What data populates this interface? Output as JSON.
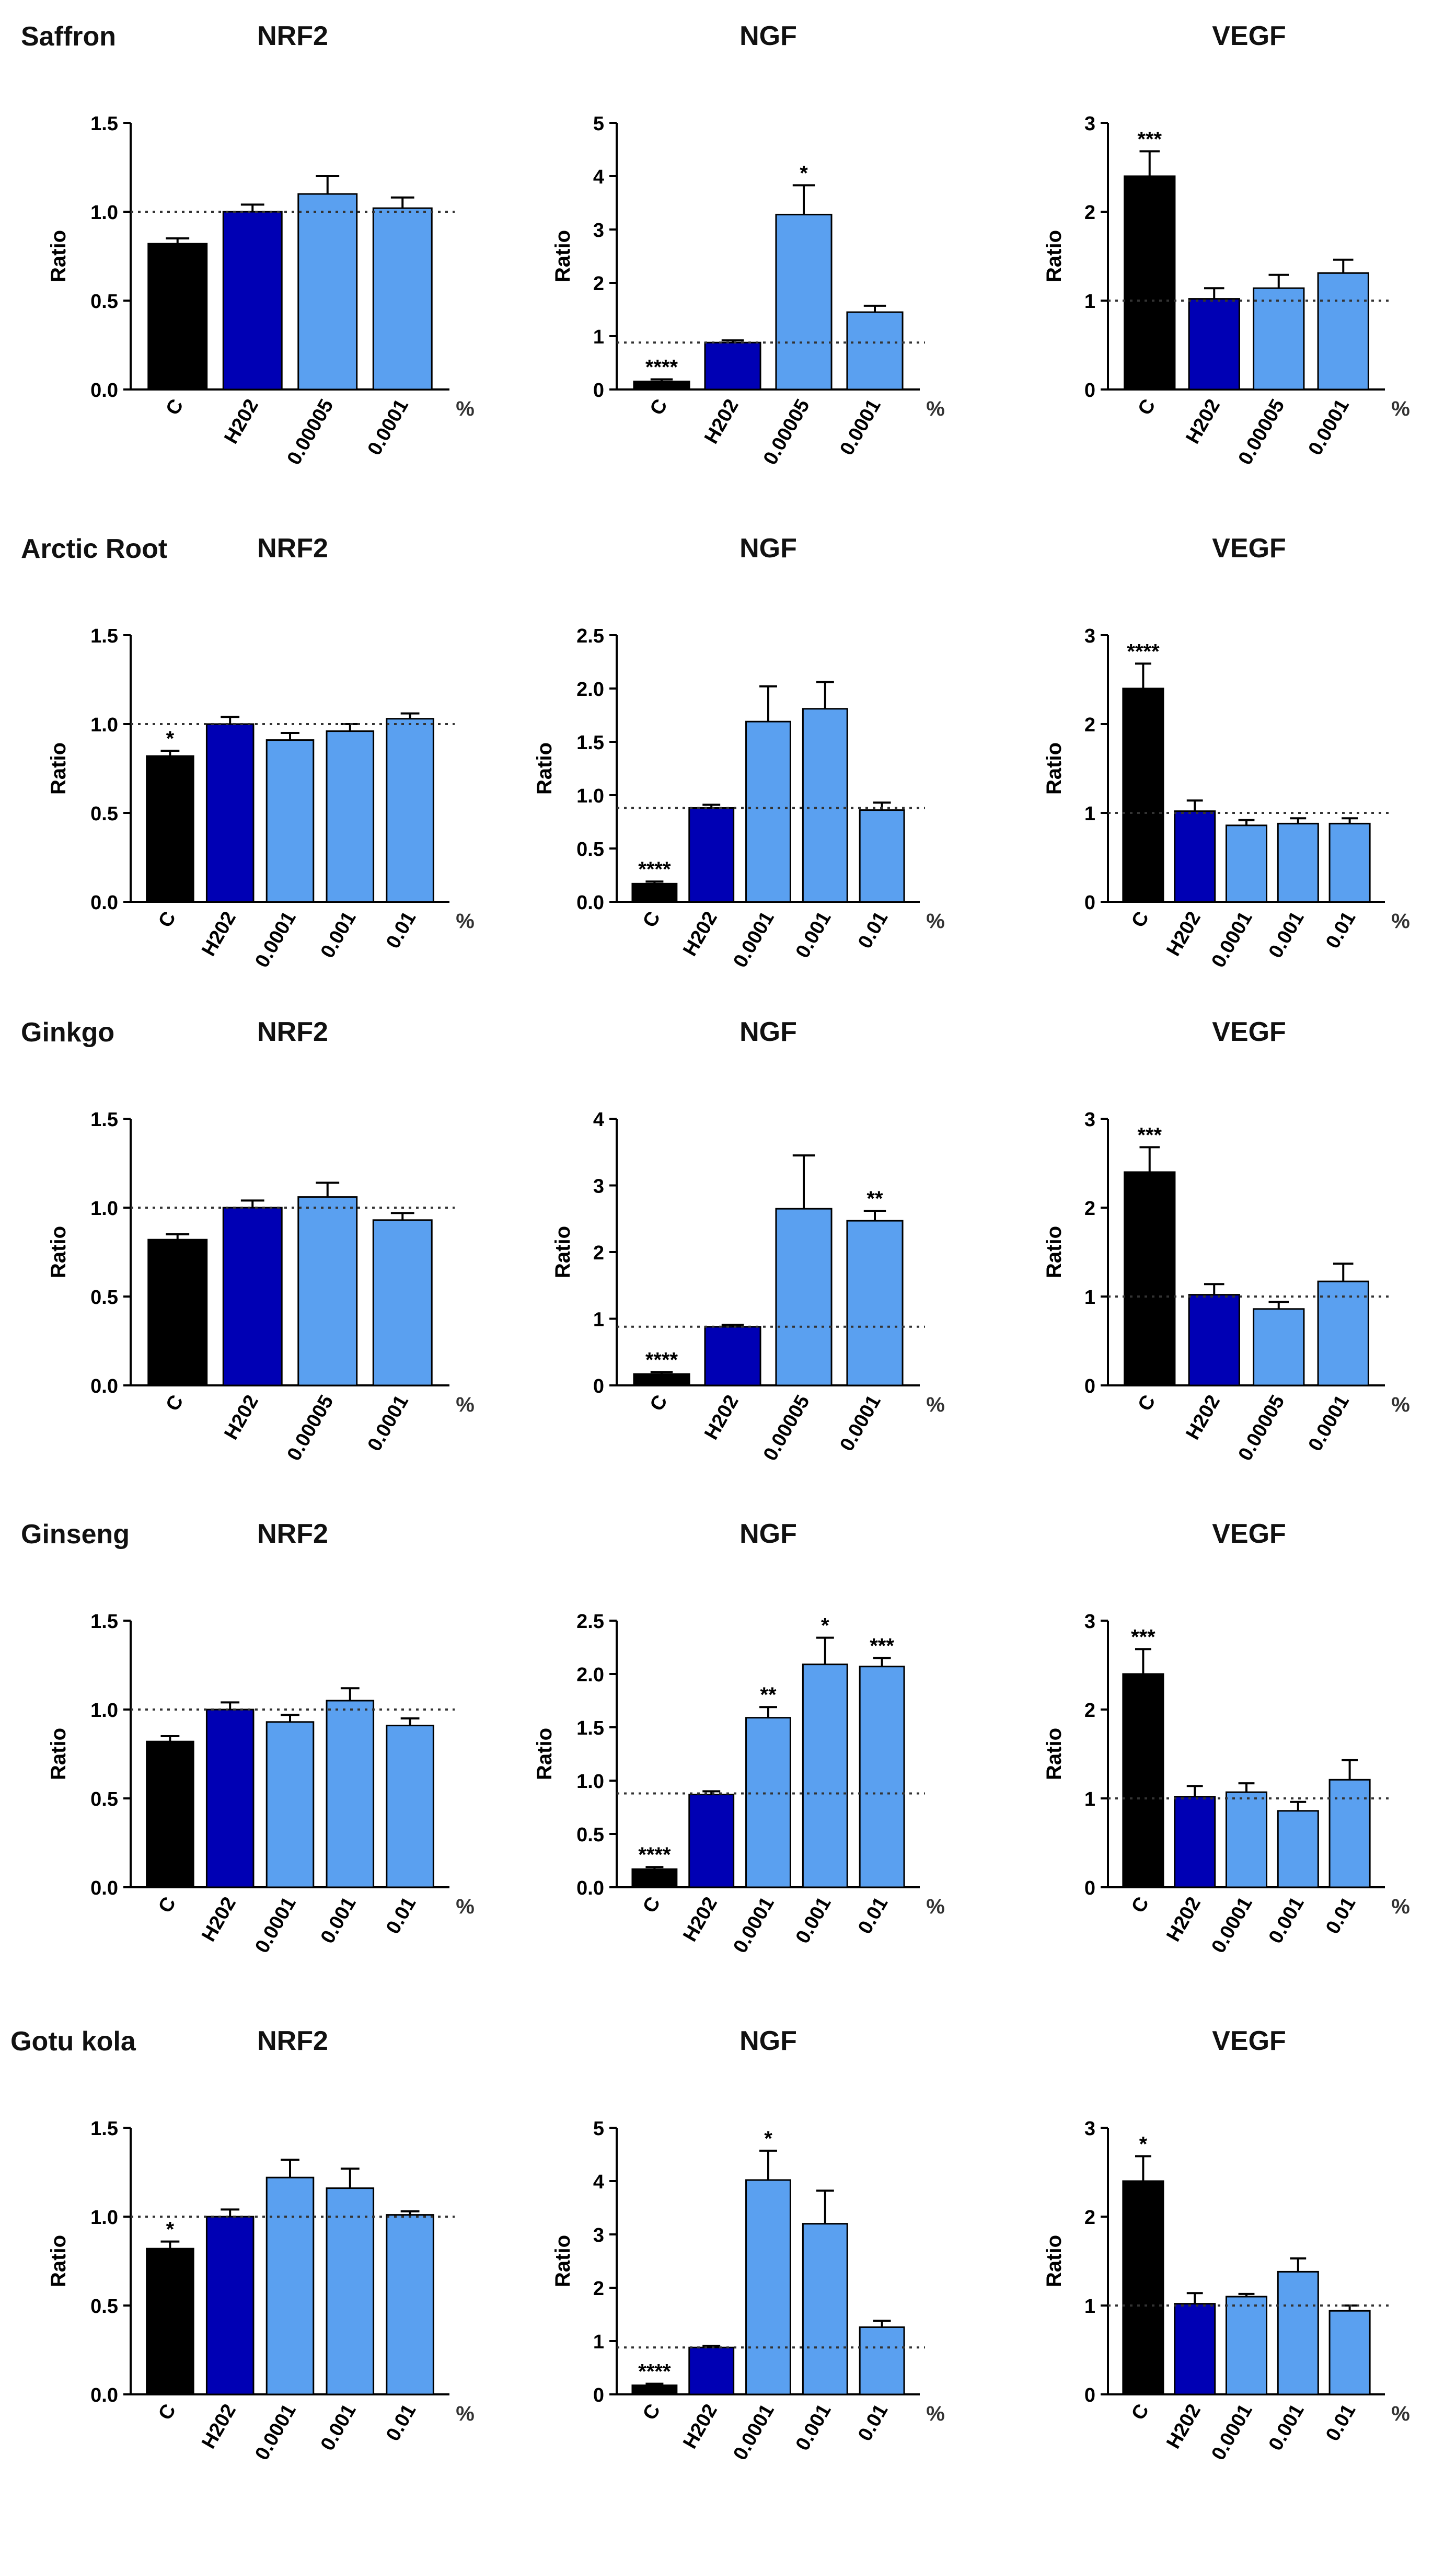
{
  "figure": {
    "rows": [
      {
        "plant": "Saffron",
        "charts": [
          {
            "type": "bar",
            "title": "NRF2",
            "ylabel": "Ratio",
            "unit": "%",
            "ylim": [
              0,
              1.5
            ],
            "yticks": [
              "0.0",
              "0.5",
              "1.0",
              "1.5"
            ],
            "reference": 1.0,
            "categories": [
              "C",
              "H202",
              "0.00005",
              "0.0001"
            ],
            "values": [
              0.82,
              1.0,
              1.1,
              1.02
            ],
            "errors": [
              0.03,
              0.04,
              0.1,
              0.06
            ],
            "stars": [
              "",
              "",
              "",
              ""
            ],
            "colors": [
              "#000000",
              "#0000b4",
              "#5aa0f0",
              "#5aa0f0"
            ]
          },
          {
            "type": "bar",
            "title": "NGF",
            "ylabel": "Ratio",
            "unit": "%",
            "ylim": [
              0,
              5
            ],
            "yticks": [
              "0",
              "1",
              "2",
              "3",
              "4",
              "5"
            ],
            "reference": 0.88,
            "categories": [
              "C",
              "H202",
              "0.00005",
              "0.0001"
            ],
            "values": [
              0.15,
              0.88,
              3.28,
              1.45
            ],
            "errors": [
              0.04,
              0.04,
              0.55,
              0.12
            ],
            "stars": [
              "****",
              "",
              "*",
              ""
            ],
            "colors": [
              "#000000",
              "#0000b4",
              "#5aa0f0",
              "#5aa0f0"
            ]
          },
          {
            "type": "bar",
            "title": "VEGF",
            "ylabel": "Ratio",
            "unit": "%",
            "ylim": [
              0,
              3
            ],
            "yticks": [
              "0",
              "1",
              "2",
              "3"
            ],
            "reference": 1.0,
            "categories": [
              "C",
              "H202",
              "0.00005",
              "0.0001"
            ],
            "values": [
              2.4,
              1.02,
              1.14,
              1.31
            ],
            "errors": [
              0.28,
              0.12,
              0.15,
              0.15
            ],
            "stars": [
              "***",
              "",
              "",
              ""
            ],
            "colors": [
              "#000000",
              "#0000b4",
              "#5aa0f0",
              "#5aa0f0"
            ]
          }
        ]
      },
      {
        "plant": "Arctic Root",
        "charts": [
          {
            "type": "bar",
            "title": "NRF2",
            "ylabel": "Ratio",
            "unit": "%",
            "ylim": [
              0,
              1.5
            ],
            "yticks": [
              "0.0",
              "0.5",
              "1.0",
              "1.5"
            ],
            "reference": 1.0,
            "categories": [
              "C",
              "H202",
              "0.0001",
              "0.001",
              "0.01"
            ],
            "values": [
              0.82,
              1.0,
              0.91,
              0.96,
              1.03
            ],
            "errors": [
              0.03,
              0.04,
              0.04,
              0.04,
              0.03
            ],
            "stars": [
              "*",
              "",
              "",
              "",
              ""
            ],
            "colors": [
              "#000000",
              "#0000b4",
              "#5aa0f0",
              "#5aa0f0",
              "#5aa0f0"
            ]
          },
          {
            "type": "bar",
            "title": "NGF",
            "ylabel": "Ratio",
            "unit": "%",
            "ylim": [
              0,
              2.5
            ],
            "yticks": [
              "0.0",
              "0.5",
              "1.0",
              "1.5",
              "2.0",
              "2.5"
            ],
            "reference": 0.88,
            "categories": [
              "C",
              "H202",
              "0.0001",
              "0.001",
              "0.01"
            ],
            "values": [
              0.17,
              0.88,
              1.69,
              1.81,
              0.86
            ],
            "errors": [
              0.02,
              0.03,
              0.33,
              0.25,
              0.07
            ],
            "stars": [
              "****",
              "",
              "",
              "",
              ""
            ],
            "colors": [
              "#000000",
              "#0000b4",
              "#5aa0f0",
              "#5aa0f0",
              "#5aa0f0"
            ]
          },
          {
            "type": "bar",
            "title": "VEGF",
            "ylabel": "Ratio",
            "unit": "%",
            "ylim": [
              0,
              3
            ],
            "yticks": [
              "0",
              "1",
              "2",
              "3"
            ],
            "reference": 1.0,
            "categories": [
              "C",
              "H202",
              "0.0001",
              "0.001",
              "0.01"
            ],
            "values": [
              2.4,
              1.02,
              0.86,
              0.88,
              0.88
            ],
            "errors": [
              0.28,
              0.12,
              0.06,
              0.06,
              0.06
            ],
            "stars": [
              "****",
              "",
              "",
              "",
              ""
            ],
            "colors": [
              "#000000",
              "#0000b4",
              "#5aa0f0",
              "#5aa0f0",
              "#5aa0f0"
            ]
          }
        ]
      },
      {
        "plant": "Ginkgo",
        "charts": [
          {
            "type": "bar",
            "title": "NRF2",
            "ylabel": "Ratio",
            "unit": "%",
            "ylim": [
              0,
              1.5
            ],
            "yticks": [
              "0.0",
              "0.5",
              "1.0",
              "1.5"
            ],
            "reference": 1.0,
            "categories": [
              "C",
              "H202",
              "0.00005",
              "0.0001"
            ],
            "values": [
              0.82,
              1.0,
              1.06,
              0.93
            ],
            "errors": [
              0.03,
              0.04,
              0.08,
              0.04
            ],
            "stars": [
              "",
              "",
              "",
              ""
            ],
            "colors": [
              "#000000",
              "#0000b4",
              "#5aa0f0",
              "#5aa0f0"
            ]
          },
          {
            "type": "bar",
            "title": "NGF",
            "ylabel": "Ratio",
            "unit": "%",
            "ylim": [
              0,
              4
            ],
            "yticks": [
              "0",
              "1",
              "2",
              "3",
              "4"
            ],
            "reference": 0.88,
            "categories": [
              "C",
              "H202",
              "0.00005",
              "0.0001"
            ],
            "values": [
              0.17,
              0.88,
              2.65,
              2.47
            ],
            "errors": [
              0.03,
              0.03,
              0.8,
              0.15
            ],
            "stars": [
              "****",
              "",
              "",
              "**"
            ],
            "colors": [
              "#000000",
              "#0000b4",
              "#5aa0f0",
              "#5aa0f0"
            ]
          },
          {
            "type": "bar",
            "title": "VEGF",
            "ylabel": "Ratio",
            "unit": "%",
            "ylim": [
              0,
              3
            ],
            "yticks": [
              "0",
              "1",
              "2",
              "3"
            ],
            "reference": 1.0,
            "categories": [
              "C",
              "H202",
              "0.00005",
              "0.0001"
            ],
            "values": [
              2.4,
              1.02,
              0.86,
              1.17
            ],
            "errors": [
              0.28,
              0.12,
              0.08,
              0.2
            ],
            "stars": [
              "***",
              "",
              "",
              ""
            ],
            "colors": [
              "#000000",
              "#0000b4",
              "#5aa0f0",
              "#5aa0f0"
            ]
          }
        ]
      },
      {
        "plant": "Ginseng",
        "charts": [
          {
            "type": "bar",
            "title": "NRF2",
            "ylabel": "Ratio",
            "unit": "%",
            "ylim": [
              0,
              1.5
            ],
            "yticks": [
              "0.0",
              "0.5",
              "1.0",
              "1.5"
            ],
            "reference": 1.0,
            "categories": [
              "C",
              "H202",
              "0.0001",
              "0.001",
              "0.01"
            ],
            "values": [
              0.82,
              1.0,
              0.93,
              1.05,
              0.91
            ],
            "errors": [
              0.03,
              0.04,
              0.04,
              0.07,
              0.04
            ],
            "stars": [
              "",
              "",
              "",
              "",
              ""
            ],
            "colors": [
              "#000000",
              "#0000b4",
              "#5aa0f0",
              "#5aa0f0",
              "#5aa0f0"
            ]
          },
          {
            "type": "bar",
            "title": "NGF",
            "ylabel": "Ratio",
            "unit": "%",
            "ylim": [
              0,
              2.5
            ],
            "yticks": [
              "0.0",
              "0.5",
              "1.0",
              "1.5",
              "2.0",
              "2.5"
            ],
            "reference": 0.88,
            "categories": [
              "C",
              "H202",
              "0.0001",
              "0.001",
              "0.01"
            ],
            "values": [
              0.17,
              0.87,
              1.59,
              2.09,
              2.07
            ],
            "errors": [
              0.02,
              0.03,
              0.1,
              0.25,
              0.08
            ],
            "stars": [
              "****",
              "",
              "**",
              "*",
              "***"
            ],
            "colors": [
              "#000000",
              "#0000b4",
              "#5aa0f0",
              "#5aa0f0",
              "#5aa0f0"
            ]
          },
          {
            "type": "bar",
            "title": "VEGF",
            "ylabel": "Ratio",
            "unit": "%",
            "ylim": [
              0,
              3
            ],
            "yticks": [
              "0",
              "1",
              "2",
              "3"
            ],
            "reference": 1.0,
            "categories": [
              "C",
              "H202",
              "0.0001",
              "0.001",
              "0.01"
            ],
            "values": [
              2.4,
              1.02,
              1.07,
              0.86,
              1.21
            ],
            "errors": [
              0.28,
              0.12,
              0.1,
              0.1,
              0.22
            ],
            "stars": [
              "***",
              "",
              "",
              "",
              ""
            ],
            "colors": [
              "#000000",
              "#0000b4",
              "#5aa0f0",
              "#5aa0f0",
              "#5aa0f0"
            ]
          }
        ]
      },
      {
        "plant": "Gotu kola",
        "charts": [
          {
            "type": "bar",
            "title": "NRF2",
            "ylabel": "Ratio",
            "unit": "%",
            "ylim": [
              0,
              1.5
            ],
            "yticks": [
              "0.0",
              "0.5",
              "1.0",
              "1.5"
            ],
            "reference": 1.0,
            "categories": [
              "C",
              "H202",
              "0.0001",
              "0.001",
              "0.01"
            ],
            "values": [
              0.82,
              1.0,
              1.22,
              1.16,
              1.01
            ],
            "errors": [
              0.04,
              0.04,
              0.1,
              0.11,
              0.02
            ],
            "stars": [
              "*",
              "",
              "",
              "",
              ""
            ],
            "colors": [
              "#000000",
              "#0000b4",
              "#5aa0f0",
              "#5aa0f0",
              "#5aa0f0"
            ]
          },
          {
            "type": "bar",
            "title": "NGF",
            "ylabel": "Ratio",
            "unit": "%",
            "ylim": [
              0,
              5
            ],
            "yticks": [
              "0",
              "1",
              "2",
              "3",
              "4",
              "5"
            ],
            "reference": 0.88,
            "categories": [
              "C",
              "H202",
              "0.0001",
              "0.001",
              "0.01"
            ],
            "values": [
              0.17,
              0.88,
              4.02,
              3.2,
              1.26
            ],
            "errors": [
              0.03,
              0.03,
              0.55,
              0.62,
              0.12
            ],
            "stars": [
              "****",
              "",
              "*",
              "",
              ""
            ],
            "colors": [
              "#000000",
              "#0000b4",
              "#5aa0f0",
              "#5aa0f0",
              "#5aa0f0"
            ]
          },
          {
            "type": "bar",
            "title": "VEGF",
            "ylabel": "Ratio",
            "unit": "%",
            "ylim": [
              0,
              3
            ],
            "yticks": [
              "0",
              "1",
              "2",
              "3"
            ],
            "reference": 1.0,
            "categories": [
              "C",
              "H202",
              "0.0001",
              "0.001",
              "0.01"
            ],
            "values": [
              2.4,
              1.02,
              1.1,
              1.38,
              0.94
            ],
            "errors": [
              0.28,
              0.12,
              0.03,
              0.15,
              0.06
            ],
            "stars": [
              "*",
              "",
              "",
              "",
              ""
            ],
            "colors": [
              "#000000",
              "#0000b4",
              "#5aa0f0",
              "#5aa0f0",
              "#5aa0f0"
            ]
          }
        ]
      }
    ]
  },
  "chart_data": []
}
